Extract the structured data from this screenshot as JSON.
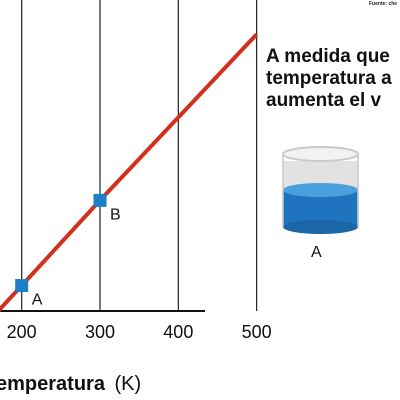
{
  "source_note": "Fuente: che",
  "statement_lines": [
    "A medida que",
    "temperatura a",
    "aumenta el v"
  ],
  "cylinder_label": "A",
  "colors": {
    "line": "#d2301c",
    "marker": "#1f7fc6",
    "gridline": "#222222",
    "cylinder_liquid": "#1f74bd",
    "cylinder_liquid_top": "#4aa0de",
    "cylinder_glass": "#c9c9c9"
  },
  "chart_data": {
    "type": "line",
    "xlabel_text": "emperatura",
    "xlabel_unit": "(K)",
    "x_ticks": [
      200,
      300,
      400,
      500
    ],
    "xlim": [
      170,
      520
    ],
    "series": [
      {
        "x": [
          170,
          200,
          300,
          500
        ],
        "y": [
          0,
          0.092,
          0.4,
          1.0
        ]
      }
    ],
    "points": [
      {
        "label": "A",
        "x": 200,
        "y": 0.092
      },
      {
        "label": "B",
        "x": 300,
        "y": 0.4
      }
    ],
    "ylim": [
      0,
      1.1
    ],
    "grid": "vertical"
  }
}
